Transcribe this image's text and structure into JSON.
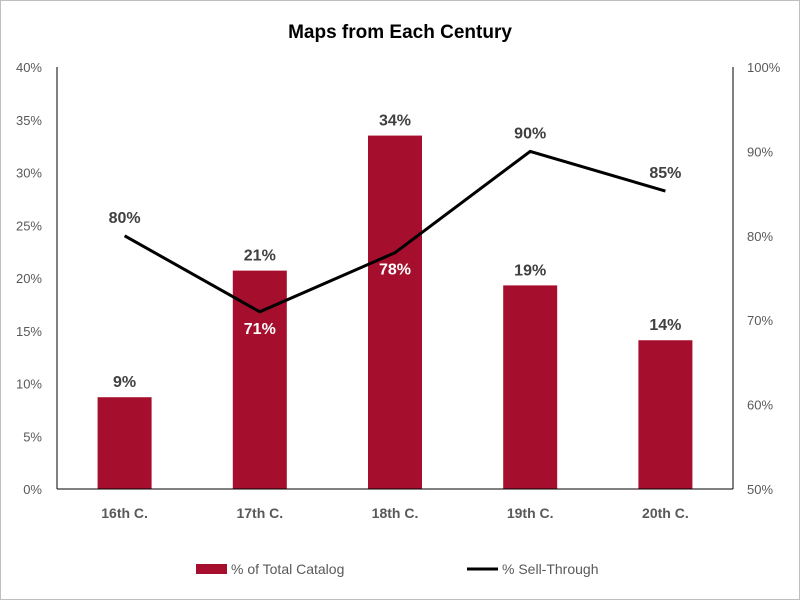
{
  "chart_data": {
    "type": "bar",
    "title": "Maps from Each Century",
    "categories": [
      "16th C.",
      "17th C.",
      "18th C.",
      "19th C.",
      "20th C."
    ],
    "series": [
      {
        "name": "% of Total Catalog",
        "kind": "bar",
        "axis": "left",
        "color": "#A50F2D",
        "values": [
          0.087,
          0.207,
          0.335,
          0.193,
          0.141
        ],
        "labels": [
          "9%",
          "21%",
          "34%",
          "19%",
          "14%"
        ]
      },
      {
        "name": "% Sell-Through",
        "kind": "line",
        "axis": "right",
        "color": "#000000",
        "values": [
          0.8,
          0.71,
          0.78,
          0.9,
          0.853
        ],
        "labels": [
          "80%",
          "71%",
          "78%",
          "90%",
          "85%"
        ]
      }
    ],
    "y_left": {
      "lim": [
        0,
        0.4
      ],
      "ticks": [
        0,
        0.05,
        0.1,
        0.15,
        0.2,
        0.25,
        0.3,
        0.35,
        0.4
      ],
      "tick_labels": [
        "0%",
        "5%",
        "10%",
        "15%",
        "20%",
        "25%",
        "30%",
        "35%",
        "40%"
      ]
    },
    "y_right": {
      "lim": [
        0.5,
        1.0
      ],
      "ticks": [
        0.5,
        0.6,
        0.7,
        0.8,
        0.9,
        1.0
      ],
      "tick_labels": [
        "50%",
        "60%",
        "70%",
        "80%",
        "90%",
        "100%"
      ]
    },
    "grid": false,
    "legend": "bottom"
  }
}
